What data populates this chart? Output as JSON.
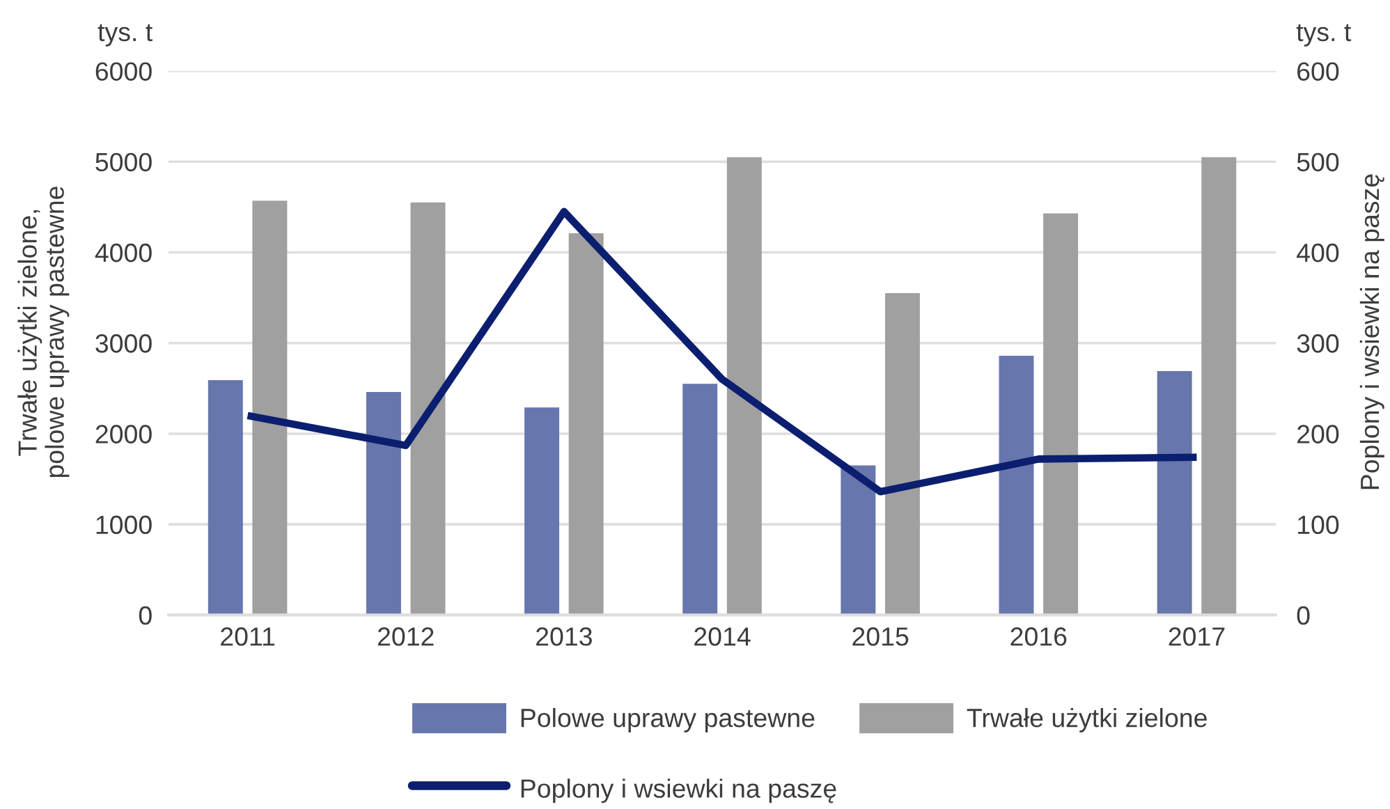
{
  "chart_data": {
    "type": "bar",
    "categories": [
      "2011",
      "2012",
      "2013",
      "2014",
      "2015",
      "2016",
      "2017"
    ],
    "ylabel": "Trwałe użytki zielone,\npolowe uprawy pastewne",
    "y2label": "Poplony i wsiewki na paszę",
    "annotations": [
      "tys. t",
      "tys. t"
    ],
    "series": [
      {
        "name": "Polowe uprawy pastewne",
        "color": "#6777ad",
        "values": [
          2590,
          2460,
          2290,
          2550,
          1650,
          2860,
          2690
        ]
      },
      {
        "name": "Trwałe użytki zielone",
        "color": "#a0a0a0",
        "values": [
          4570,
          4550,
          4210,
          5050,
          3550,
          4430,
          5050
        ]
      },
      {
        "name": "Poplony i wsiewki na paszę",
        "type": "line",
        "axis": "y2",
        "color": "#0b1e70",
        "values": [
          220,
          187,
          445,
          260,
          136,
          172,
          174
        ]
      }
    ],
    "ylim": [
      0,
      6000
    ],
    "yticks": [
      0,
      1000,
      2000,
      3000,
      4000,
      5000,
      6000
    ],
    "y2lim": [
      0,
      600
    ],
    "y2ticks": [
      0,
      100,
      200,
      300,
      400,
      500,
      600
    ],
    "grid": "y",
    "legend": "bottom",
    "line_style": "solid"
  }
}
